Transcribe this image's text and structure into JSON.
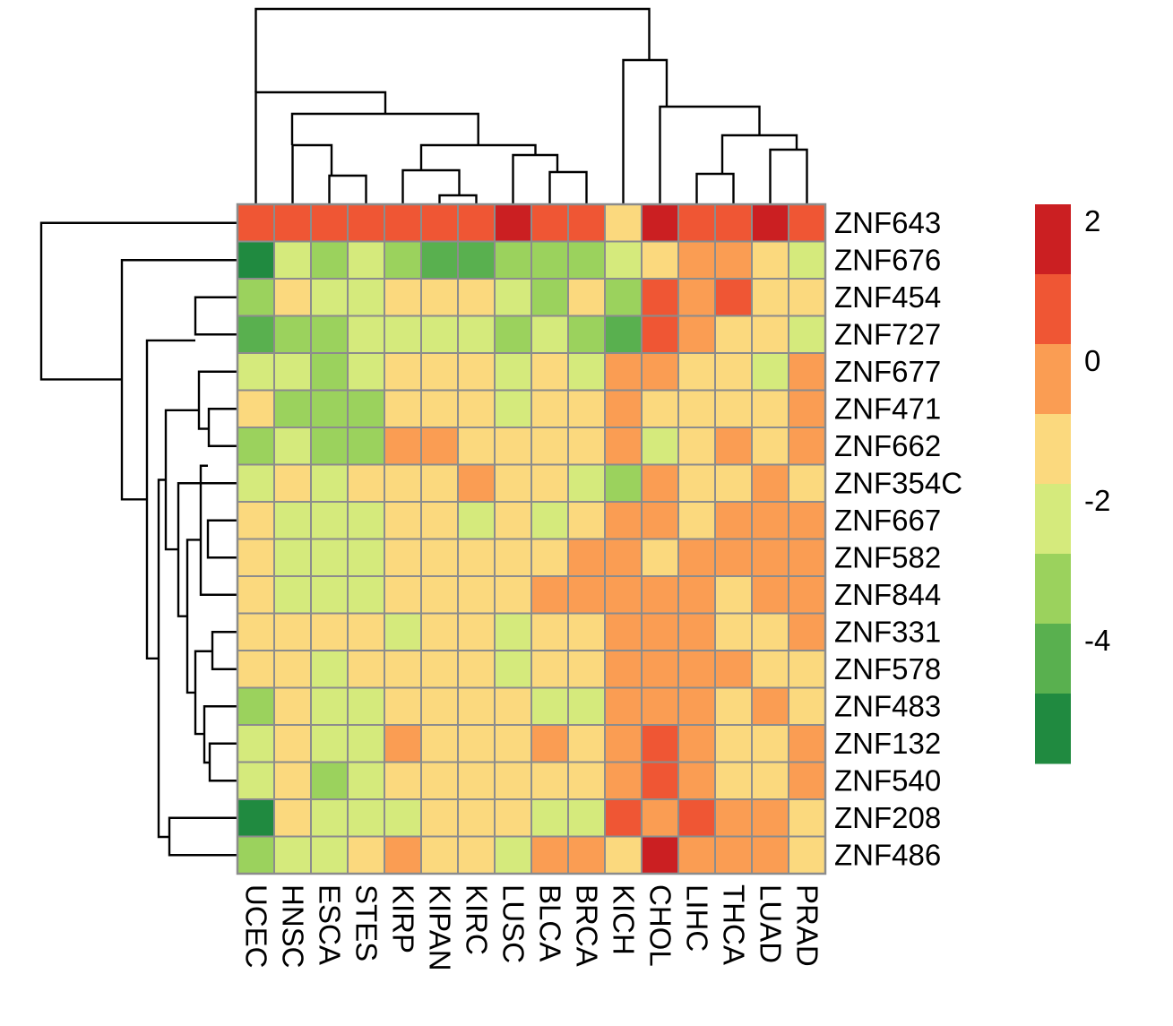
{
  "chart_data": {
    "type": "heatmap",
    "title": "",
    "columns": [
      "UCEC",
      "HNSC",
      "ESCA",
      "STES",
      "KIRP",
      "KIPAN",
      "KIRC",
      "LUSC",
      "BLCA",
      "BRCA",
      "KICH",
      "CHOL",
      "LIHC",
      "THCA",
      "LUAD",
      "PRAD"
    ],
    "rows": [
      "ZNF643",
      "ZNF676",
      "ZNF454",
      "ZNF727",
      "ZNF677",
      "ZNF471",
      "ZNF662",
      "ZNF354C",
      "ZNF667",
      "ZNF582",
      "ZNF844",
      "ZNF331",
      "ZNF578",
      "ZNF483",
      "ZNF132",
      "ZNF540",
      "ZNF208",
      "ZNF486"
    ],
    "values": [
      [
        1,
        1,
        1,
        1,
        1,
        1,
        1,
        2,
        1,
        1,
        -1,
        2,
        1,
        1,
        2,
        1
      ],
      [
        -5,
        -2,
        -3,
        -2,
        -3,
        -4,
        -4,
        -3,
        -3,
        -3,
        -2,
        -1,
        0,
        0,
        -1,
        -2
      ],
      [
        -3,
        -1,
        -2,
        -2,
        -1,
        -1,
        -1,
        -2,
        -3,
        -1,
        -3,
        1,
        0,
        1,
        -1,
        -1
      ],
      [
        -4,
        -3,
        -3,
        -2,
        -2,
        -2,
        -2,
        -3,
        -2,
        -3,
        -4,
        1,
        0,
        -1,
        -1,
        -2
      ],
      [
        -2,
        -2,
        -3,
        -2,
        -1,
        -1,
        -1,
        -2,
        -1,
        -2,
        0,
        0,
        -1,
        -1,
        -2,
        0
      ],
      [
        -1,
        -3,
        -3,
        -3,
        -1,
        -1,
        -1,
        -2,
        -1,
        -1,
        0,
        -1,
        -1,
        -1,
        -1,
        0
      ],
      [
        -3,
        -2,
        -3,
        -3,
        0,
        0,
        -1,
        -1,
        -1,
        -1,
        0,
        -2,
        -1,
        0,
        -1,
        0
      ],
      [
        -2,
        -1,
        -2,
        -1,
        -1,
        -1,
        0,
        -1,
        -1,
        -2,
        -3,
        0,
        -1,
        -1,
        0,
        -1
      ],
      [
        -1,
        -2,
        -2,
        -2,
        -1,
        -1,
        -2,
        -1,
        -2,
        -1,
        0,
        0,
        -1,
        0,
        0,
        0
      ],
      [
        -1,
        -2,
        -2,
        -2,
        -1,
        -1,
        -1,
        -1,
        -1,
        0,
        0,
        -1,
        0,
        0,
        0,
        0
      ],
      [
        -1,
        -2,
        -2,
        -2,
        -1,
        -1,
        -1,
        -1,
        0,
        0,
        0,
        0,
        0,
        -1,
        0,
        0
      ],
      [
        -1,
        -1,
        -1,
        -1,
        -2,
        -1,
        -1,
        -2,
        -1,
        -1,
        0,
        0,
        0,
        -1,
        -1,
        0
      ],
      [
        -1,
        -1,
        -2,
        -1,
        -1,
        -1,
        -1,
        -2,
        -1,
        -1,
        0,
        0,
        0,
        0,
        -1,
        -1
      ],
      [
        -3,
        -1,
        -2,
        -2,
        -1,
        -1,
        -1,
        -1,
        -2,
        -2,
        0,
        0,
        0,
        -1,
        0,
        -1
      ],
      [
        -2,
        -1,
        -2,
        -2,
        0,
        -1,
        -1,
        -1,
        0,
        -1,
        0,
        1,
        0,
        -1,
        -1,
        0
      ],
      [
        -2,
        -1,
        -3,
        -2,
        -1,
        -1,
        -1,
        -1,
        -1,
        -1,
        0,
        1,
        0,
        -1,
        -1,
        0
      ],
      [
        -5,
        -1,
        -2,
        -2,
        -2,
        -1,
        -1,
        -1,
        -2,
        -2,
        1,
        0,
        1,
        0,
        0,
        -1
      ],
      [
        -3,
        -2,
        -2,
        -1,
        0,
        -1,
        -1,
        -2,
        0,
        0,
        -1,
        2,
        0,
        0,
        0,
        -1
      ]
    ],
    "color_scale": {
      "bins": [
        {
          "level": -5,
          "color": "#208a40"
        },
        {
          "level": -4,
          "color": "#59b04f"
        },
        {
          "level": -3,
          "color": "#9bd25d"
        },
        {
          "level": -2,
          "color": "#d5ea7c"
        },
        {
          "level": -1,
          "color": "#fbd97e"
        },
        {
          "level": 0,
          "color": "#fa9d53"
        },
        {
          "level": 1,
          "color": "#ef5634"
        },
        {
          "level": 2,
          "color": "#cb1f22"
        }
      ],
      "ticks": [
        "2",
        "0",
        "-2",
        "-4"
      ]
    },
    "grid": true,
    "legend_position": "right",
    "column_dendrogram": true,
    "row_dendrogram": true
  }
}
